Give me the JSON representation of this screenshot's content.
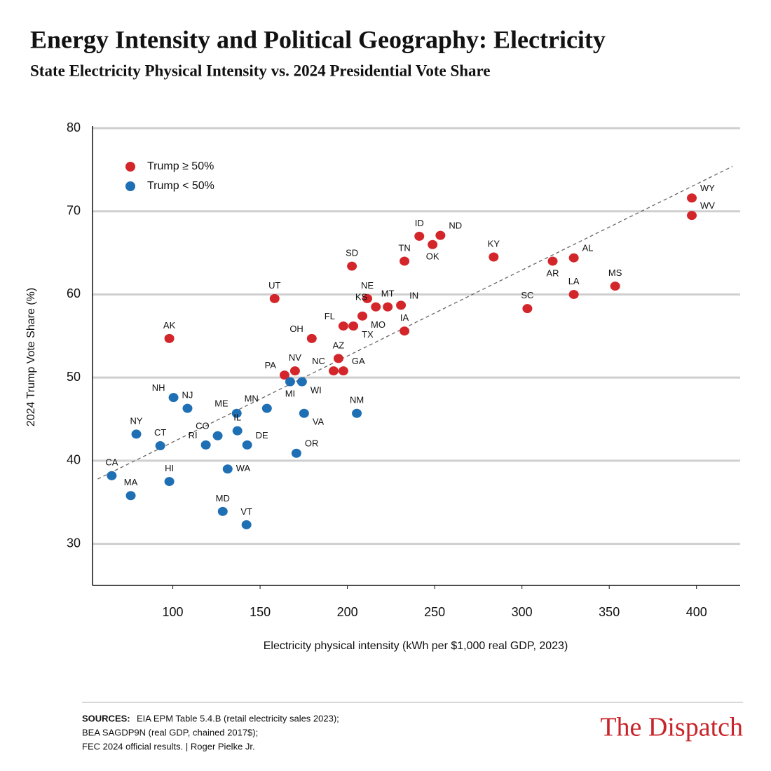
{
  "chart_data": {
    "type": "scatter",
    "title": "Energy Intensity and Political Geography: Electricity",
    "subtitle": "State Electricity Physical Intensity vs. 2024 Presidential Vote Share",
    "x_label": "Electricity physical intensity (kWh per $1,000 real GDP, 2023)",
    "y_label": "2024 Trump Vote Share (%)",
    "xlim": [
      54,
      425
    ],
    "ylim": [
      25,
      80
    ],
    "xticks": [
      100,
      150,
      200,
      250,
      300,
      350,
      400
    ],
    "yticks": [
      30,
      40,
      50,
      60,
      70,
      80
    ],
    "grid": true,
    "legend": "top-left",
    "series": [
      {
        "name": "Trump ≥ 50%",
        "color": "#d3262b",
        "labels": [
          "WY",
          "WV",
          "ID",
          "ND",
          "OK",
          "SD",
          "TN",
          "KY",
          "AR",
          "AL",
          "MS",
          "LA",
          "SC",
          "UT",
          "NE",
          "MT",
          "IN",
          "KS",
          "MO",
          "FL",
          "TX",
          "IA",
          "OH",
          "AK",
          "AZ",
          "NC",
          "GA",
          "NV",
          "PA"
        ],
        "x": [
          397.3,
          397.3,
          241.2,
          253.3,
          248.8,
          202.6,
          232.7,
          283.8,
          317.6,
          329.7,
          353.4,
          329.7,
          303.1,
          158.3,
          211.4,
          223.1,
          230.7,
          216.3,
          208.6,
          197.7,
          203.4,
          232.7,
          179.6,
          98.0,
          194.9,
          192.1,
          197.7,
          170.0,
          164.0
        ],
        "values": [
          71.6,
          69.5,
          67.0,
          67.1,
          66.0,
          63.4,
          64.0,
          64.5,
          64.0,
          64.4,
          61.0,
          60.0,
          58.3,
          59.5,
          59.5,
          58.5,
          58.7,
          58.5,
          57.4,
          56.2,
          56.2,
          55.6,
          54.7,
          54.7,
          52.3,
          50.8,
          50.8,
          50.8,
          50.3
        ]
      },
      {
        "name": "Trump < 50%",
        "color": "#1f6fb4",
        "labels": [
          "MI",
          "WI",
          "NH",
          "NJ",
          "MN",
          "ME",
          "VA",
          "NM",
          "NY",
          "IL",
          "CO",
          "CT",
          "RI",
          "DE",
          "OR",
          "WA",
          "CA",
          "HI",
          "MA",
          "MD",
          "VT"
        ],
        "x": [
          167.2,
          174.0,
          100.4,
          108.4,
          153.9,
          136.6,
          175.2,
          205.4,
          79.1,
          137.0,
          125.7,
          92.8,
          118.9,
          142.6,
          170.8,
          131.4,
          65.0,
          98.0,
          75.9,
          128.6,
          142.2
        ],
        "values": [
          49.5,
          49.5,
          47.6,
          46.3,
          46.3,
          45.7,
          45.7,
          45.7,
          43.2,
          43.6,
          43.0,
          41.8,
          41.9,
          41.9,
          40.9,
          39.0,
          38.2,
          37.5,
          35.8,
          33.9,
          32.3
        ]
      }
    ],
    "trendline": {
      "color": "#666666",
      "x": [
        57.0,
        420.6
      ],
      "values": [
        37.8,
        75.4
      ]
    }
  },
  "footer": {
    "sources_label": "SOURCES:",
    "sources_lines": [
      "EIA EPM Table 5.4.B (retail electricity sales 2023);",
      "BEA SAGDP9N (real GDP, chained 2017$);",
      "FEC 2024 official results. | Roger Pielke Jr."
    ],
    "brand": "The Dispatch"
  }
}
